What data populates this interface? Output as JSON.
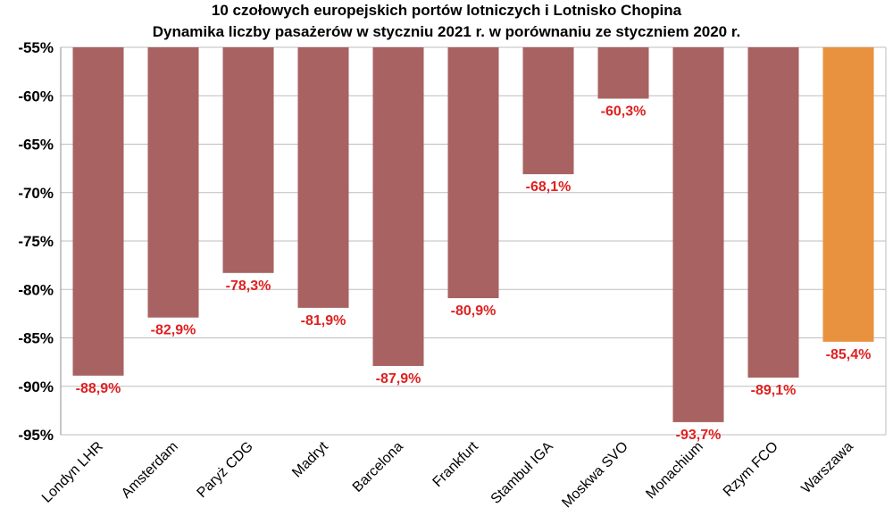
{
  "chart_data": {
    "type": "bar",
    "title": "10 czołowych  europejskich  portów  lotniczych  i  Lotnisko  Chopina",
    "subtitle": "Dynamika  liczby  pasażerów  w  styczniu  2021 r.   w  porównaniu   ze  styczniem  2020 r.",
    "xlabel": "",
    "ylabel": "",
    "ylim": [
      -95,
      -55
    ],
    "yticks": [
      -55,
      -60,
      -65,
      -70,
      -75,
      -80,
      -85,
      -90,
      -95
    ],
    "ytick_labels": [
      "-55%",
      "-60%",
      "-65%",
      "-70%",
      "-75%",
      "-80%",
      "-85%",
      "-90%",
      "-95%"
    ],
    "categories": [
      "Londyn LHR",
      "Amsterdam",
      "Paryż CDG",
      "Madryt",
      "Barcelona",
      "Frankfurt",
      "Stambuł IGA",
      "Moskwa SVO",
      "Monachium",
      "Rzym FCO",
      "Warszawa"
    ],
    "values": [
      -88.9,
      -82.9,
      -78.3,
      -81.9,
      -87.9,
      -80.9,
      -68.1,
      -60.3,
      -93.7,
      -89.1,
      -85.4
    ],
    "data_labels": [
      "-88,9%",
      "-82,9%",
      "-78,3%",
      "-81,9%",
      "-87,9%",
      "-80,9%",
      "-68,1%",
      "-60,3%",
      "-93,7%",
      "-89,1%",
      "-85,4%"
    ],
    "bar_colors": [
      "#a86261",
      "#a86261",
      "#a86261",
      "#a86261",
      "#a86261",
      "#a86261",
      "#a86261",
      "#a86261",
      "#a86261",
      "#a86261",
      "#e8913f"
    ],
    "label_color": "#e02020",
    "grid": true
  }
}
